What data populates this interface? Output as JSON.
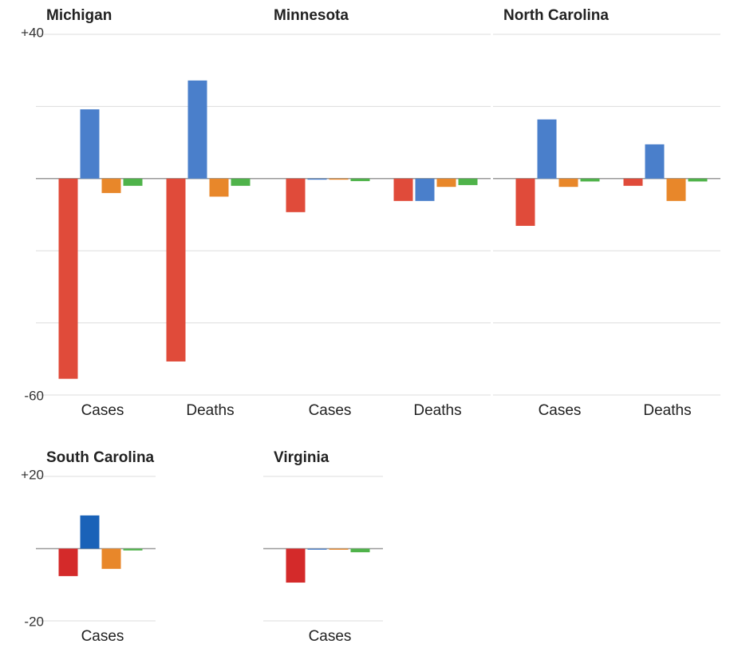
{
  "chart_data": [
    {
      "type": "bar",
      "title": "Michigan",
      "categories": [
        "Cases",
        "Deaths"
      ],
      "series": [
        {
          "color": "#e04b3a",
          "values": [
            -55.5,
            -50.7
          ]
        },
        {
          "color": "#4a7fcb",
          "values": [
            19.2,
            27.2
          ]
        },
        {
          "color": "#e8872a",
          "values": [
            -4,
            -5
          ]
        },
        {
          "color": "#4fb34a",
          "values": [
            -2,
            -2
          ]
        }
      ],
      "ylim": [
        -60,
        40
      ],
      "yticks": [
        {
          "value": 40,
          "label": "+40"
        },
        -60
      ],
      "ygrid": [
        40,
        20,
        0,
        -20,
        -40,
        -60
      ]
    },
    {
      "type": "bar",
      "title": "Minnesota",
      "categories": [
        "Cases",
        "Deaths"
      ],
      "series": [
        {
          "color": "#e04b3a",
          "values": [
            -9.3,
            -6.2
          ]
        },
        {
          "color": "#4a7fcb",
          "values": [
            -0.3,
            -6.2
          ]
        },
        {
          "color": "#e8872a",
          "values": [
            -0.3,
            -2.3
          ]
        },
        {
          "color": "#4fb34a",
          "values": [
            -0.7,
            -1.8
          ]
        }
      ],
      "ylim": [
        -60,
        40
      ],
      "ygrid": [
        40,
        20,
        0,
        -20,
        -40,
        -60
      ]
    },
    {
      "type": "bar",
      "title": "North Carolina",
      "categories": [
        "Cases",
        "Deaths"
      ],
      "series": [
        {
          "color": "#e04b3a",
          "values": [
            -13.1,
            -2
          ]
        },
        {
          "color": "#4a7fcb",
          "values": [
            16.4,
            9.5
          ]
        },
        {
          "color": "#e8872a",
          "values": [
            -2.3,
            -6.2
          ]
        },
        {
          "color": "#4fb34a",
          "values": [
            -0.8,
            -0.8
          ]
        }
      ],
      "ylim": [
        -60,
        40
      ],
      "ygrid": [
        40,
        20,
        0,
        -20,
        -40,
        -60
      ]
    },
    {
      "type": "bar",
      "title": "South Carolina",
      "categories": [
        "Cases"
      ],
      "series": [
        {
          "color": "#d42a2a",
          "values": [
            -7.6
          ]
        },
        {
          "color": "#1a62b8",
          "values": [
            9.2
          ]
        },
        {
          "color": "#e8872a",
          "values": [
            -5.6
          ]
        },
        {
          "color": "#4fb34a",
          "values": [
            -0.5
          ]
        }
      ],
      "ylim": [
        -20,
        20
      ],
      "yticks": [
        {
          "value": 20,
          "label": "+20"
        },
        -20
      ],
      "ygrid": [
        20,
        0,
        -20
      ]
    },
    {
      "type": "bar",
      "title": "Virginia",
      "categories": [
        "Cases"
      ],
      "series": [
        {
          "color": "#d42a2a",
          "values": [
            -9.4
          ]
        },
        {
          "color": "#4a7fcb",
          "values": [
            -0.3
          ]
        },
        {
          "color": "#e8872a",
          "values": [
            -0.3
          ]
        },
        {
          "color": "#4fb34a",
          "values": [
            -1
          ]
        }
      ],
      "ylim": [
        -20,
        20
      ],
      "ygrid": [
        20,
        0,
        -20
      ]
    }
  ]
}
